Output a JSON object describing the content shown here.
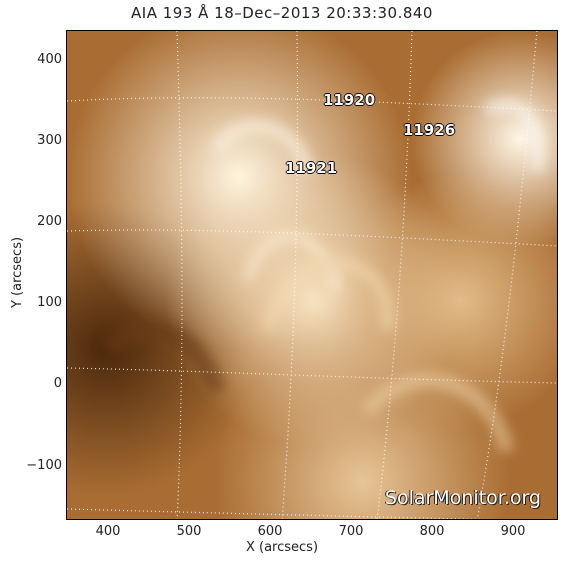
{
  "title": "AIA 193 Å 18–Dec–2013  20:33:30.840",
  "axes": {
    "xlabel": "X (arcsecs)",
    "ylabel": "Y (arcsecs)",
    "xlim": [
      350,
      950
    ],
    "ylim": [
      -160,
      440
    ],
    "xticks": [
      "400",
      "500",
      "600",
      "700",
      "800",
      "900"
    ],
    "yticks": [
      "400",
      "300",
      "200",
      "100",
      "0",
      "−100"
    ]
  },
  "active_regions": [
    {
      "id": "11920",
      "x": 685,
      "y": 345
    },
    {
      "id": "11926",
      "x": 790,
      "y": 310
    },
    {
      "id": "11921",
      "x": 635,
      "y": 270
    }
  ],
  "watermark": "SolarMonitor.org",
  "colors": {
    "accent": "#b87a3a",
    "dark": "#5a3414",
    "bright": "#fff0d8"
  }
}
